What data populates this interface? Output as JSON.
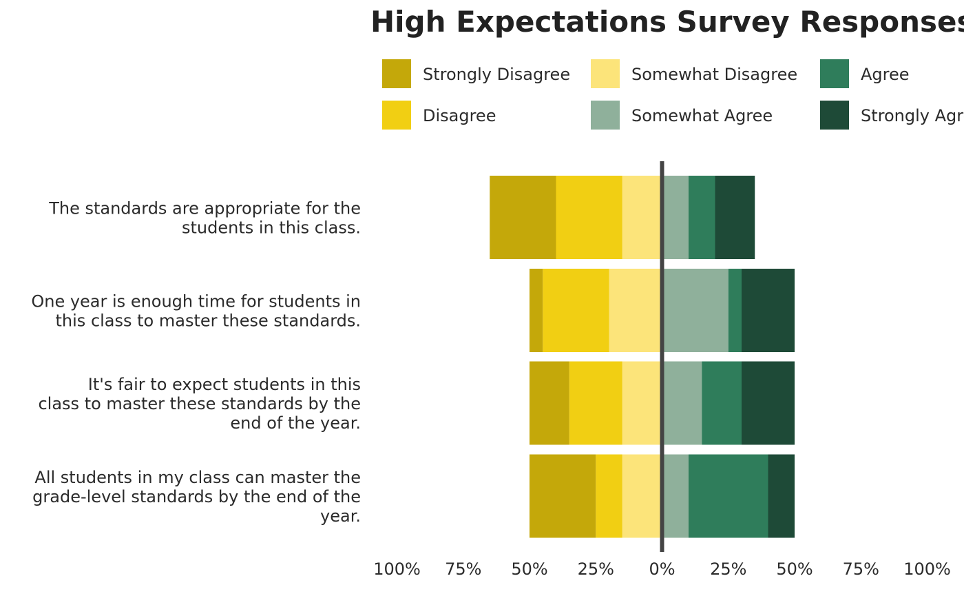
{
  "chart_data": {
    "type": "bar",
    "orientation": "horizontal",
    "stacking": "diverging",
    "title": "High Expectations Survey Responses",
    "legend": {
      "placement": "top",
      "entries": [
        {
          "name": "Strongly Disagree",
          "color": "#C4A80A"
        },
        {
          "name": "Disagree",
          "color": "#F1CF13"
        },
        {
          "name": "Somewhat Disagree",
          "color": "#FCE47A"
        },
        {
          "name": "Somewhat Agree",
          "color": "#8FB09B"
        },
        {
          "name": "Agree",
          "color": "#2F7D5B"
        },
        {
          "name": "Strongly Agree",
          "color": "#1E4A37"
        }
      ]
    },
    "categories": [
      "The standards are appropriate for the students in this class.",
      "One year is enough time for students in this class to master these standards.",
      "It's fair to expect students in this class to master these standards by the end of the year.",
      "All students in my class can master the grade-level standards by the end of the year."
    ],
    "series": [
      {
        "name": "Strongly Disagree",
        "color": "#C4A80A",
        "side": "negative",
        "values": [
          25,
          5,
          15,
          25
        ]
      },
      {
        "name": "Disagree",
        "color": "#F1CF13",
        "side": "negative",
        "values": [
          25,
          25,
          20,
          10
        ]
      },
      {
        "name": "Somewhat Disagree",
        "color": "#FCE47A",
        "side": "negative",
        "values": [
          15,
          20,
          15,
          15
        ]
      },
      {
        "name": "Somewhat Agree",
        "color": "#8FB09B",
        "side": "positive",
        "values": [
          10,
          25,
          15,
          10
        ]
      },
      {
        "name": "Agree",
        "color": "#2F7D5B",
        "side": "positive",
        "values": [
          10,
          5,
          15,
          30
        ]
      },
      {
        "name": "Strongly Agree",
        "color": "#1E4A37",
        "side": "positive",
        "values": [
          15,
          20,
          20,
          10
        ]
      }
    ],
    "xlim": [
      -100,
      100
    ],
    "x_ticks": [
      "100%",
      "75%",
      "50%",
      "25%",
      "0%",
      "25%",
      "50%",
      "75%",
      "100%"
    ],
    "grid": false,
    "zero_line": true
  }
}
